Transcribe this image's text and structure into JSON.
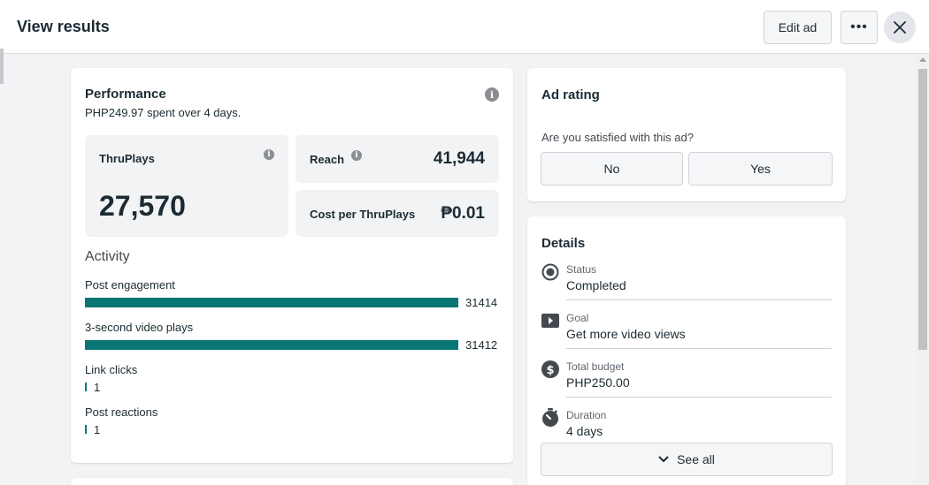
{
  "header": {
    "title": "View results",
    "edit_label": "Edit ad",
    "more_label": "•••"
  },
  "performance": {
    "title": "Performance",
    "spent_amount": "PHP249.97",
    "spent_mid": " spent over ",
    "spent_days": "4 days",
    "spent_end": ".",
    "thruplays_label": "ThruPlays",
    "thruplays_value": "27,570",
    "reach_label": "Reach",
    "reach_value": "41,944",
    "cost_label": "Cost per ThruPlays",
    "cost_value": "₱0.01",
    "activity_title": "Activity",
    "activity": [
      {
        "label": "Post engagement",
        "value": "31414",
        "fraction": 1.0
      },
      {
        "label": "3-second video plays",
        "value": "31412",
        "fraction": 0.9999
      },
      {
        "label": "Link clicks",
        "value": "1",
        "fraction": 3e-05
      },
      {
        "label": "Post reactions",
        "value": "1",
        "fraction": 3e-05
      }
    ]
  },
  "ad_rating": {
    "title": "Ad rating",
    "question": "Are you satisfied with this ad?",
    "no_label": "No",
    "yes_label": "Yes"
  },
  "details": {
    "title": "Details",
    "items": [
      {
        "label": "Status",
        "value": "Completed",
        "icon": "radio-icon"
      },
      {
        "label": "Goal",
        "value": "Get more video views",
        "icon": "video-play-icon"
      },
      {
        "label": "Total budget",
        "value": "PHP250.00",
        "icon": "dollar-icon"
      },
      {
        "label": "Duration",
        "value": "4 days",
        "icon": "stopwatch-icon"
      }
    ],
    "see_all_label": "See all"
  },
  "colors": {
    "accent": "#0a7575",
    "text": "#1c2b33",
    "background": "#f2f3f5"
  }
}
